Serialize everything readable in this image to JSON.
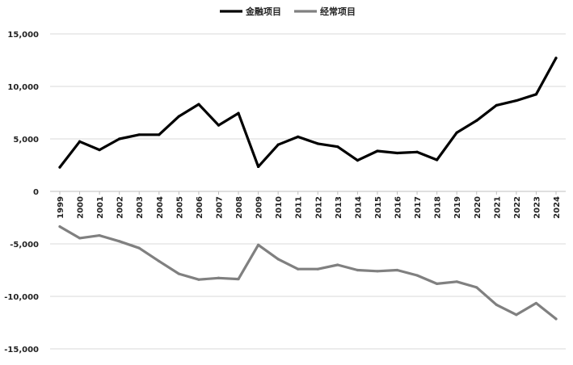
{
  "chart_data": {
    "type": "line",
    "title": "",
    "xlabel": "",
    "ylabel": "",
    "ylim": [
      -15000,
      15000
    ],
    "y_ticks": [
      {
        "value": 15000,
        "label": "15,000"
      },
      {
        "value": 10000,
        "label": "10,000"
      },
      {
        "value": 5000,
        "label": "5,000"
      },
      {
        "value": 0,
        "label": "0"
      },
      {
        "value": -5000,
        "label": "-5,000"
      },
      {
        "value": -10000,
        "label": "-10,000"
      },
      {
        "value": -15000,
        "label": "-15,000"
      }
    ],
    "grid": true,
    "legend_position": "top-center",
    "x": [
      "1999",
      "2000",
      "2001",
      "2002",
      "2003",
      "2004",
      "2005",
      "2006",
      "2007",
      "2008",
      "2009",
      "2010",
      "2011",
      "2012",
      "2013",
      "2014",
      "2015",
      "2016",
      "2017",
      "2018",
      "2019",
      "2020",
      "2021",
      "2022",
      "2023",
      "2024"
    ],
    "series": [
      {
        "name": "金融项目",
        "color": "#000000",
        "values": [
          2300,
          4750,
          3950,
          5000,
          5400,
          5400,
          7150,
          8300,
          6300,
          7450,
          2350,
          4450,
          5200,
          4550,
          4250,
          2950,
          3850,
          3650,
          3750,
          3000,
          5600,
          6750,
          8200,
          8650,
          9250,
          12700
        ]
      },
      {
        "name": "经常项目",
        "color": "#808080",
        "values": [
          -3350,
          -4450,
          -4200,
          -4750,
          -5400,
          -6650,
          -7850,
          -8400,
          -8250,
          -8350,
          -5100,
          -6450,
          -7400,
          -7400,
          -7000,
          -7500,
          -7600,
          -7500,
          -8000,
          -8800,
          -8600,
          -9150,
          -10800,
          -11750,
          -10650,
          -12150
        ]
      }
    ]
  }
}
